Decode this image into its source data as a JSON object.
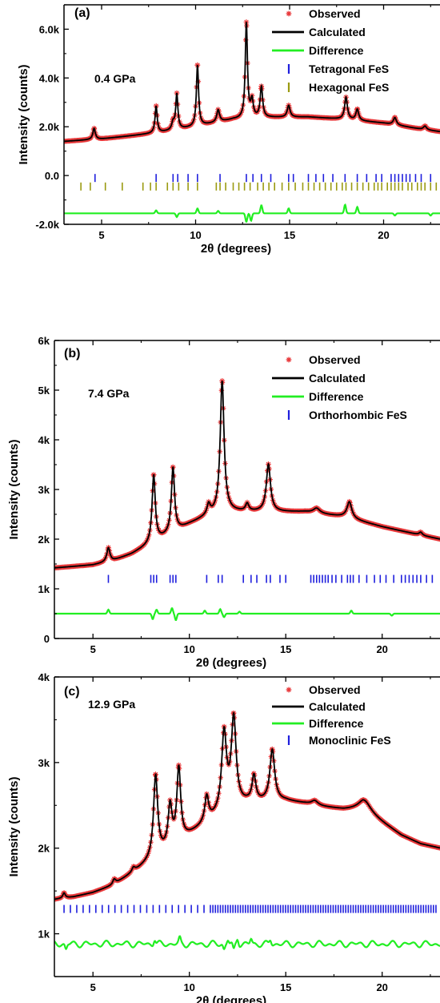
{
  "colors": {
    "observed": "#e8383a",
    "calculated": "#000000",
    "difference": "#22ee22",
    "tick_blue": "#1f1fdd",
    "tick_olive": "#9a9a10",
    "axis": "#000000"
  },
  "chart_data": [
    {
      "type": "line",
      "panel_label": "(a)",
      "annotation": "0.4 GPa",
      "xlabel": "2θ (degrees)",
      "ylabel": "Intensity (counts)",
      "xlim": [
        3,
        23
      ],
      "ylim": [
        -2000,
        7000
      ],
      "xticks": [
        5,
        10,
        15,
        20
      ],
      "yticks": [
        -2000,
        0,
        2000,
        4000,
        6000
      ],
      "yticklabels": [
        "-2.0k",
        "0.0",
        "2.0k",
        "4.0k",
        "6.0k"
      ],
      "baseline": [
        [
          3,
          1400
        ],
        [
          5,
          1500
        ],
        [
          8,
          1750
        ],
        [
          10,
          2000
        ],
        [
          12,
          2300
        ],
        [
          14,
          2380
        ],
        [
          16,
          2400
        ],
        [
          18,
          2300
        ],
        [
          20,
          2150
        ],
        [
          22,
          1900
        ],
        [
          23,
          1800
        ]
      ],
      "peaks": [
        {
          "x": 4.6,
          "h": 450,
          "w": 0.08
        },
        {
          "x": 7.9,
          "h": 1100,
          "w": 0.07
        },
        {
          "x": 8.8,
          "h": 300,
          "w": 0.08
        },
        {
          "x": 9.0,
          "h": 1450,
          "w": 0.07
        },
        {
          "x": 10.1,
          "h": 2500,
          "w": 0.07
        },
        {
          "x": 11.2,
          "h": 500,
          "w": 0.09
        },
        {
          "x": 12.7,
          "h": 3900,
          "w": 0.07
        },
        {
          "x": 13.0,
          "h": 700,
          "w": 0.08
        },
        {
          "x": 13.5,
          "h": 1250,
          "w": 0.08
        },
        {
          "x": 14.95,
          "h": 480,
          "w": 0.09
        },
        {
          "x": 18.0,
          "h": 900,
          "w": 0.09
        },
        {
          "x": 18.6,
          "h": 450,
          "w": 0.09
        },
        {
          "x": 20.6,
          "h": 300,
          "w": 0.1
        },
        {
          "x": 22.2,
          "h": 150,
          "w": 0.1
        }
      ],
      "difference_offset": -1550,
      "difference_features": [
        [
          7.9,
          120
        ],
        [
          9.0,
          -150
        ],
        [
          10.1,
          200
        ],
        [
          11.2,
          100
        ],
        [
          12.7,
          -350
        ],
        [
          12.95,
          -300
        ],
        [
          13.5,
          330
        ],
        [
          14.95,
          200
        ],
        [
          17.95,
          350
        ],
        [
          18.6,
          260
        ],
        [
          20.6,
          -90
        ],
        [
          22.5,
          -90
        ]
      ],
      "reflection_rows": [
        {
          "name": "Tetragonal FeS",
          "value": -100,
          "color_key": "tick_blue",
          "positions": [
            4.65,
            7.9,
            8.8,
            9.05,
            9.6,
            10.1,
            11.3,
            12.7,
            13.05,
            13.5,
            14.0,
            14.95,
            15.2,
            16.0,
            16.4,
            16.8,
            17.3,
            17.95,
            18.6,
            19.1,
            19.6,
            19.9,
            20.4,
            20.6,
            20.8,
            21.0,
            21.2,
            21.4,
            21.7,
            22.0,
            22.5
          ]
        },
        {
          "name": "Hexagonal FeS",
          "value": -450,
          "color_key": "tick_olive",
          "positions": [
            3.9,
            4.4,
            5.2,
            6.1,
            7.2,
            7.6,
            7.9,
            8.5,
            8.8,
            9.1,
            9.6,
            10.1,
            11.1,
            11.3,
            11.6,
            12.0,
            12.3,
            12.6,
            12.9,
            13.3,
            13.6,
            13.9,
            14.2,
            14.6,
            14.95,
            15.3,
            15.7,
            16.0,
            16.3,
            16.6,
            16.9,
            17.2,
            17.5,
            17.8,
            18.0,
            18.3,
            18.6,
            18.9,
            19.2,
            19.5,
            19.7,
            19.9,
            20.2,
            20.4,
            20.6,
            20.8,
            21.0,
            21.3,
            21.5,
            21.8,
            22.0,
            22.2,
            22.5,
            22.8
          ]
        }
      ],
      "legend": [
        {
          "label": "Observed",
          "kind": "star",
          "color_key": "observed"
        },
        {
          "label": "Calculated",
          "kind": "line",
          "color_key": "calculated"
        },
        {
          "label": "Difference",
          "kind": "line",
          "color_key": "difference"
        },
        {
          "label": "Tetragonal FeS",
          "kind": "bar",
          "color_key": "tick_blue"
        },
        {
          "label": "Hexagonal FeS",
          "kind": "bar",
          "color_key": "tick_olive"
        }
      ]
    },
    {
      "type": "line",
      "panel_label": "(b)",
      "annotation": "7.4 GPa",
      "xlabel": "2θ (degrees)",
      "ylabel": "Intensity (counts)",
      "xlim": [
        3,
        23
      ],
      "ylim": [
        0,
        6000
      ],
      "xticks": [
        5,
        10,
        15,
        20
      ],
      "yticks": [
        0,
        1000,
        2000,
        3000,
        4000,
        5000,
        6000
      ],
      "yticklabels": [
        "0",
        "1k",
        "2k",
        "3k",
        "4k",
        "5k",
        "6k"
      ],
      "baseline": [
        [
          3,
          1420
        ],
        [
          5,
          1480
        ],
        [
          6,
          1560
        ],
        [
          7,
          1700
        ],
        [
          8,
          1900
        ],
        [
          9,
          2100
        ],
        [
          10,
          2300
        ],
        [
          11,
          2470
        ],
        [
          12,
          2550
        ],
        [
          14,
          2550
        ],
        [
          16,
          2550
        ],
        [
          18,
          2450
        ],
        [
          20,
          2250
        ],
        [
          22,
          2080
        ],
        [
          23,
          2000
        ]
      ],
      "peaks": [
        {
          "x": 5.8,
          "h": 280,
          "w": 0.1
        },
        {
          "x": 8.15,
          "h": 1350,
          "w": 0.1
        },
        {
          "x": 9.15,
          "h": 1300,
          "w": 0.1
        },
        {
          "x": 11.0,
          "h": 200,
          "w": 0.1
        },
        {
          "x": 11.7,
          "h": 2650,
          "w": 0.12
        },
        {
          "x": 13.0,
          "h": 150,
          "w": 0.1
        },
        {
          "x": 14.1,
          "h": 950,
          "w": 0.13
        },
        {
          "x": 16.6,
          "h": 100,
          "w": 0.2
        },
        {
          "x": 18.3,
          "h": 330,
          "w": 0.15
        },
        {
          "x": 22.0,
          "h": 60,
          "w": 0.1
        }
      ],
      "difference_offset": 500,
      "difference_features": [
        [
          5.8,
          80
        ],
        [
          8.1,
          -110
        ],
        [
          8.3,
          80
        ],
        [
          9.1,
          110
        ],
        [
          9.3,
          -130
        ],
        [
          10.8,
          60
        ],
        [
          11.6,
          90
        ],
        [
          11.8,
          -70
        ],
        [
          12.6,
          40
        ],
        [
          18.4,
          60
        ],
        [
          20.5,
          -40
        ]
      ],
      "reflection_rows": [
        {
          "name": "Orthorhombic FeS",
          "value": 1200,
          "color_key": "tick_blue",
          "positions": [
            5.8,
            8.0,
            8.15,
            8.3,
            9.0,
            9.15,
            9.3,
            10.9,
            11.5,
            11.7,
            12.8,
            13.2,
            13.5,
            14.0,
            14.2,
            14.7,
            15.0,
            16.3,
            16.45,
            16.6,
            16.75,
            16.9,
            17.05,
            17.2,
            17.4,
            17.6,
            17.9,
            18.2,
            18.35,
            18.5,
            18.8,
            19.2,
            19.6,
            19.9,
            20.2,
            20.6,
            21.0,
            21.2,
            21.4,
            21.6,
            21.8,
            22.0,
            22.3,
            22.6
          ]
        }
      ],
      "legend": [
        {
          "label": "Observed",
          "kind": "star",
          "color_key": "observed"
        },
        {
          "label": "Calculated",
          "kind": "line",
          "color_key": "calculated"
        },
        {
          "label": "Difference",
          "kind": "line",
          "color_key": "difference"
        },
        {
          "label": "Orthorhombic FeS",
          "kind": "bar",
          "color_key": "tick_blue"
        }
      ]
    },
    {
      "type": "line",
      "panel_label": "(c)",
      "annotation": "12.9 GPa",
      "xlabel": "2θ (degrees)",
      "ylabel": "Intensity (counts)",
      "xlim": [
        3,
        23
      ],
      "ylim": [
        500,
        4000
      ],
      "xticks": [
        5,
        10,
        15,
        20
      ],
      "yticks": [
        1000,
        2000,
        3000,
        4000
      ],
      "yticklabels": [
        "1k",
        "2k",
        "3k",
        "4k"
      ],
      "baseline": [
        [
          3,
          1400
        ],
        [
          4,
          1430
        ],
        [
          5,
          1480
        ],
        [
          6,
          1560
        ],
        [
          7,
          1700
        ],
        [
          8,
          1850
        ],
        [
          9,
          2000
        ],
        [
          10,
          2150
        ],
        [
          11,
          2300
        ],
        [
          12,
          2450
        ],
        [
          13,
          2520
        ],
        [
          15,
          2550
        ],
        [
          16,
          2520
        ],
        [
          17,
          2480
        ],
        [
          18,
          2450
        ],
        [
          19,
          2450
        ],
        [
          20,
          2300
        ],
        [
          21,
          2150
        ],
        [
          22,
          2050
        ],
        [
          23,
          2000
        ]
      ],
      "peaks": [
        {
          "x": 3.5,
          "h": 60,
          "w": 0.08
        },
        {
          "x": 6.1,
          "h": 60,
          "w": 0.1
        },
        {
          "x": 7.1,
          "h": 50,
          "w": 0.1
        },
        {
          "x": 8.25,
          "h": 950,
          "w": 0.13
        },
        {
          "x": 9.0,
          "h": 470,
          "w": 0.12
        },
        {
          "x": 9.45,
          "h": 850,
          "w": 0.12
        },
        {
          "x": 10.9,
          "h": 300,
          "w": 0.12
        },
        {
          "x": 11.8,
          "h": 900,
          "w": 0.15
        },
        {
          "x": 12.3,
          "h": 1020,
          "w": 0.15
        },
        {
          "x": 13.35,
          "h": 300,
          "w": 0.12
        },
        {
          "x": 14.3,
          "h": 600,
          "w": 0.15
        },
        {
          "x": 16.5,
          "h": 50,
          "w": 0.2
        },
        {
          "x": 19.1,
          "h": 120,
          "w": 0.4
        }
      ],
      "difference_offset": 880,
      "difference_wiggle": 40,
      "difference_features": [
        [
          3.6,
          -60
        ],
        [
          8.2,
          60
        ],
        [
          9.5,
          60
        ],
        [
          11.8,
          -60
        ],
        [
          12.0,
          50
        ],
        [
          12.3,
          -80
        ],
        [
          12.5,
          70
        ],
        [
          13.2,
          60
        ],
        [
          14.2,
          50
        ]
      ],
      "reflection_rows": [
        {
          "name": "Monoclinic FeS",
          "value": 1290,
          "color_key": "tick_blue",
          "generated": {
            "start": 3.5,
            "end": 22.9,
            "dense_from": 11.0,
            "sparse_step": 0.33,
            "dense_step": 0.13
          }
        }
      ],
      "legend": [
        {
          "label": "Observed",
          "kind": "star",
          "color_key": "observed"
        },
        {
          "label": "Calculated",
          "kind": "line",
          "color_key": "calculated"
        },
        {
          "label": "Difference",
          "kind": "line",
          "color_key": "difference"
        },
        {
          "label": "Monoclinic FeS",
          "kind": "bar",
          "color_key": "tick_blue"
        }
      ]
    }
  ]
}
